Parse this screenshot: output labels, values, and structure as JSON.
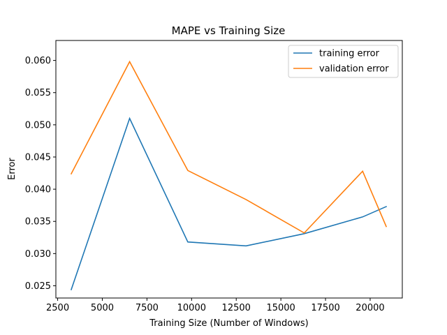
{
  "chart_data": {
    "type": "line",
    "title": "MAPE vs Training Size",
    "xlabel": "Training Size (Number of Windows)",
    "ylabel": "Error",
    "xlim": [
      2400,
      21800
    ],
    "ylim": [
      0.0231,
      0.0631
    ],
    "xticks": [
      2500,
      5000,
      7500,
      10000,
      12500,
      15000,
      17500,
      20000
    ],
    "yticks": [
      0.025,
      0.03,
      0.035,
      0.04,
      0.045,
      0.05,
      0.055,
      0.06
    ],
    "grid": false,
    "legend_position": "top-right",
    "x": [
      3260,
      6530,
      9790,
      13050,
      16310,
      19580,
      20900
    ],
    "series": [
      {
        "name": "training error",
        "color": "#1f77b4",
        "values": [
          0.0244,
          0.051,
          0.0318,
          0.0312,
          0.0331,
          0.0357,
          0.0373
        ]
      },
      {
        "name": "validation error",
        "color": "#ff7f0e",
        "values": [
          0.0424,
          0.0598,
          0.0429,
          0.0384,
          0.0332,
          0.0428,
          0.0342
        ]
      }
    ]
  }
}
